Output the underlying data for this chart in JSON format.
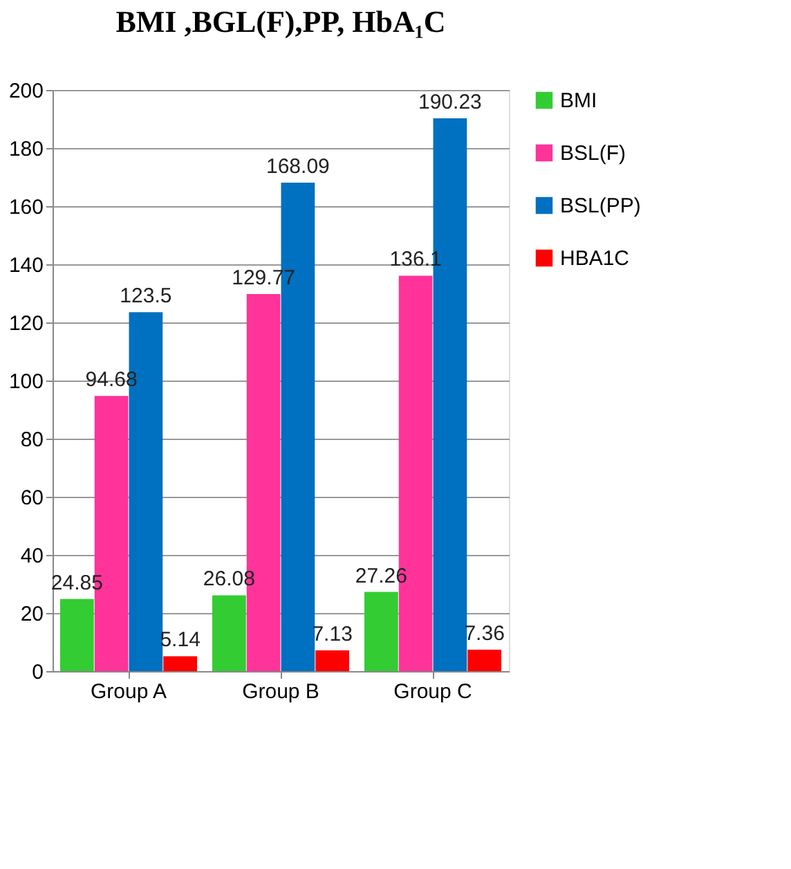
{
  "chart_data": {
    "type": "bar",
    "title": "BMI ,BGL(F),PP, HbA₁C",
    "categories": [
      "Group A",
      "Group B",
      "Group C"
    ],
    "series": [
      {
        "name": "BMI",
        "color": "#33cc33",
        "values": [
          24.85,
          26.08,
          27.26
        ]
      },
      {
        "name": "BSL(F)",
        "color": "#ff3399",
        "values": [
          94.68,
          129.77,
          136.1
        ]
      },
      {
        "name": "BSL(PP)",
        "color": "#0070c0",
        "values": [
          123.5,
          168.09,
          190.23
        ]
      },
      {
        "name": "HBA1C",
        "color": "#ff0000",
        "values": [
          5.14,
          7.13,
          7.36
        ]
      }
    ],
    "ylim": [
      0,
      200
    ],
    "yticks": [
      0,
      20,
      40,
      60,
      80,
      100,
      120,
      140,
      160,
      180,
      200
    ],
    "grid": "y",
    "legend": "right",
    "data_labels": true
  }
}
